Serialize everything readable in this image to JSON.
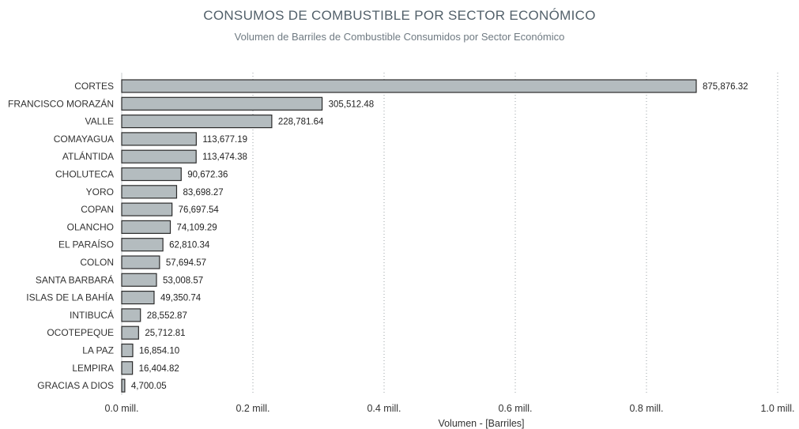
{
  "chart_data": {
    "type": "bar",
    "orientation": "horizontal",
    "title": "CONSUMOS DE COMBUSTIBLE POR SECTOR ECONÓMICO",
    "subtitle": "Volumen de Barriles de Combustible Consumidos por Sector Económico",
    "xlabel": "Volumen - [Barriles]",
    "ylabel": "",
    "xlim": [
      0,
      1000000
    ],
    "grid": "vertical dotted",
    "bar_color": "#b4bcbf",
    "bar_edge_color": "#2b2b2b",
    "xticks": [
      {
        "value": 0,
        "label": "0.0 mill."
      },
      {
        "value": 200000,
        "label": "0.2 mill."
      },
      {
        "value": 400000,
        "label": "0.4 mill."
      },
      {
        "value": 600000,
        "label": "0.6 mill."
      },
      {
        "value": 800000,
        "label": "0.8 mill."
      },
      {
        "value": 1000000,
        "label": "1.0 mill."
      }
    ],
    "categories": [
      "CORTES",
      "FRANCISCO MORAZÁN",
      "VALLE",
      "COMAYAGUA",
      "ATLÁNTIDA",
      "CHOLUTECA",
      "YORO",
      "COPAN",
      "OLANCHO",
      "EL PARAÍSO",
      "COLON",
      "SANTA BARBARÁ",
      "ISLAS DE LA BAHÍA",
      "INTIBUCÁ",
      "OCOTEPEQUE",
      "LA PAZ",
      "LEMPIRA",
      "GRACIAS A DIOS"
    ],
    "values": [
      875876.32,
      305512.48,
      228781.64,
      113677.19,
      113474.38,
      90672.36,
      83698.27,
      76697.54,
      74109.29,
      62810.34,
      57694.57,
      53008.57,
      49350.74,
      28552.87,
      25712.81,
      16854.1,
      16404.82,
      4700.05
    ],
    "value_labels": [
      "875,876.32",
      "305,512.48",
      "228,781.64",
      "113,677.19",
      "113,474.38",
      "90,672.36",
      "83,698.27",
      "76,697.54",
      "74,109.29",
      "62,810.34",
      "57,694.57",
      "53,008.57",
      "49,350.74",
      "28,552.87",
      "25,712.81",
      "16,854.10",
      "16,404.82",
      "4,700.05"
    ]
  }
}
